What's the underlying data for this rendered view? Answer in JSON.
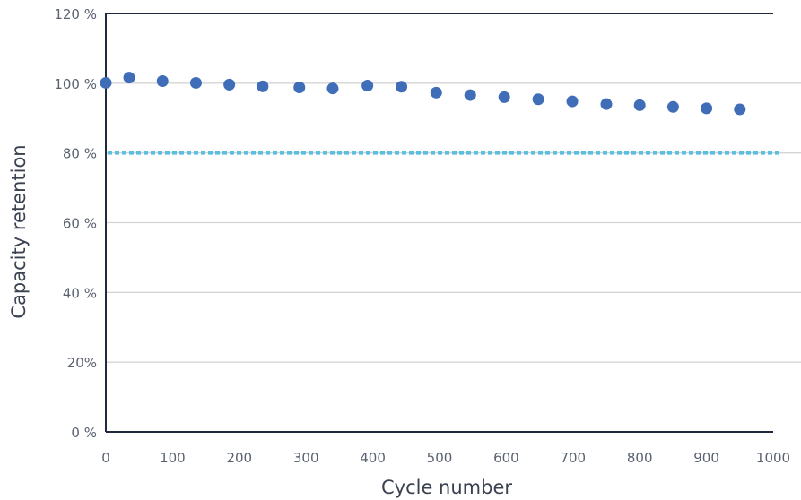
{
  "chart_data": {
    "type": "scatter",
    "xlabel": "Cycle number",
    "ylabel": "Capacity retention",
    "xlim": [
      0,
      1000
    ],
    "ylim": [
      0,
      120
    ],
    "x_ticks": [
      0,
      100,
      200,
      300,
      400,
      500,
      600,
      700,
      800,
      900,
      1000
    ],
    "x_tick_labels": [
      "0",
      "100",
      "200",
      "300",
      "400",
      "500",
      "600",
      "700",
      "800",
      "900",
      "1000"
    ],
    "y_ticks": [
      0,
      20,
      40,
      60,
      80,
      100,
      120
    ],
    "y_tick_labels": [
      "0 %",
      "20%",
      "40 %",
      "60 %",
      "80 %",
      "100 %",
      "120 %"
    ],
    "grid": "horizontal",
    "series": [
      {
        "marker_color": "#3f6db8",
        "points": [
          {
            "x": 0,
            "y": 100.1
          },
          {
            "x": 35,
            "y": 101.6
          },
          {
            "x": 85,
            "y": 100.6
          },
          {
            "x": 135,
            "y": 100.1
          },
          {
            "x": 185,
            "y": 99.6
          },
          {
            "x": 235,
            "y": 99.1
          },
          {
            "x": 290,
            "y": 98.8
          },
          {
            "x": 340,
            "y": 98.5
          },
          {
            "x": 392,
            "y": 99.3
          },
          {
            "x": 443,
            "y": 99.0
          },
          {
            "x": 495,
            "y": 97.3
          },
          {
            "x": 546,
            "y": 96.6
          },
          {
            "x": 597,
            "y": 96.0
          },
          {
            "x": 648,
            "y": 95.4
          },
          {
            "x": 699,
            "y": 94.8
          },
          {
            "x": 750,
            "y": 94.0
          },
          {
            "x": 800,
            "y": 93.7
          },
          {
            "x": 850,
            "y": 93.2
          },
          {
            "x": 900,
            "y": 92.8
          },
          {
            "x": 950,
            "y": 92.5
          }
        ]
      }
    ],
    "reference_lines": [
      {
        "y": 80,
        "style": "dotted",
        "color": "#5bc0e0"
      }
    ],
    "gridline_color": "#d4d4d4",
    "axis_color": "#1f2a3c"
  }
}
